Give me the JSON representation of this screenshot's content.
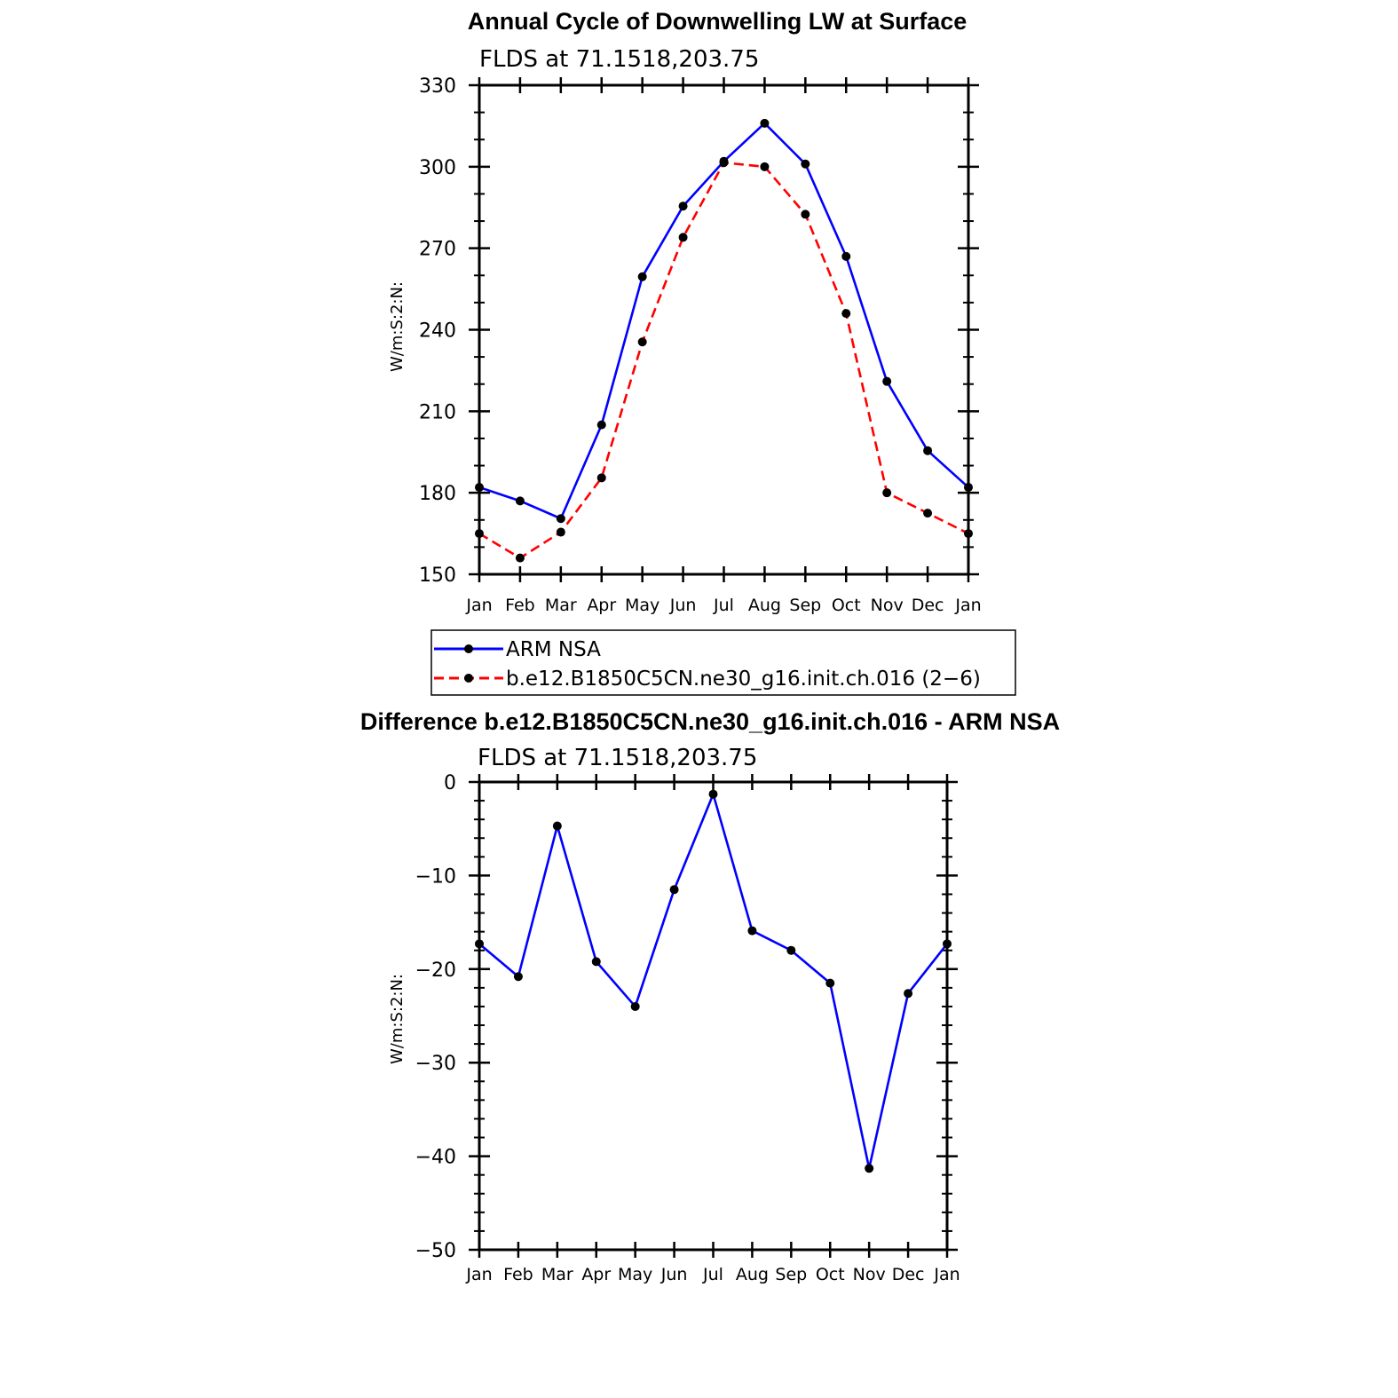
{
  "chart_data": [
    {
      "type": "line",
      "title": "Annual Cycle of Downwelling LW at Surface",
      "subtitle": "FLDS at 71.1518,203.75",
      "ylabel": "W/m:S:2:N:",
      "xlabel": "",
      "categories": [
        "Jan",
        "Feb",
        "Mar",
        "Apr",
        "May",
        "Jun",
        "Jul",
        "Aug",
        "Sep",
        "Oct",
        "Nov",
        "Dec",
        "Jan"
      ],
      "ylim": [
        150,
        330
      ],
      "yticks": [
        "150",
        "180",
        "210",
        "240",
        "270",
        "300",
        "330"
      ],
      "series": [
        {
          "name": "ARM NSA",
          "color": "#0000ff",
          "style": "solid",
          "values": [
            182,
            177,
            170.5,
            205,
            259.5,
            285.5,
            302,
            316,
            301,
            267,
            221,
            195.5,
            182
          ]
        },
        {
          "name": "b.e12.B1850C5CN.ne30_g16.init.ch.016 (2−6)",
          "color": "#ff0000",
          "style": "dashed",
          "values": [
            165,
            156,
            165.5,
            185.5,
            235.5,
            274,
            301.5,
            300,
            282.5,
            246,
            180,
            172.5,
            165
          ]
        }
      ],
      "legend": [
        {
          "label": "ARM NSA",
          "color": "#0000ff",
          "style": "solid"
        },
        {
          "label": "b.e12.B1850C5CN.ne30_g16.init.ch.016 (2−6)",
          "color": "#ff0000",
          "style": "dashed"
        }
      ],
      "legend_placement": "below"
    },
    {
      "type": "line",
      "title": "Difference b.e12.B1850C5CN.ne30_g16.init.ch.016 - ARM NSA",
      "subtitle": "FLDS at 71.1518,203.75",
      "ylabel": "W/m:S:2:N:",
      "xlabel": "",
      "categories": [
        "Jan",
        "Feb",
        "Mar",
        "Apr",
        "May",
        "Jun",
        "Jul",
        "Aug",
        "Sep",
        "Oct",
        "Nov",
        "Dec",
        "Jan"
      ],
      "ylim": [
        -50,
        0
      ],
      "yticks": [
        "−50",
        "−40",
        "−30",
        "−20",
        "−10",
        "0"
      ],
      "series": [
        {
          "name": "Difference",
          "color": "#0000ff",
          "style": "solid",
          "values": [
            -17.3,
            -20.8,
            -4.7,
            -19.2,
            -24,
            -11.5,
            -1.3,
            -15.9,
            -18,
            -21.5,
            -41.3,
            -22.6,
            -17.3
          ]
        }
      ]
    }
  ]
}
